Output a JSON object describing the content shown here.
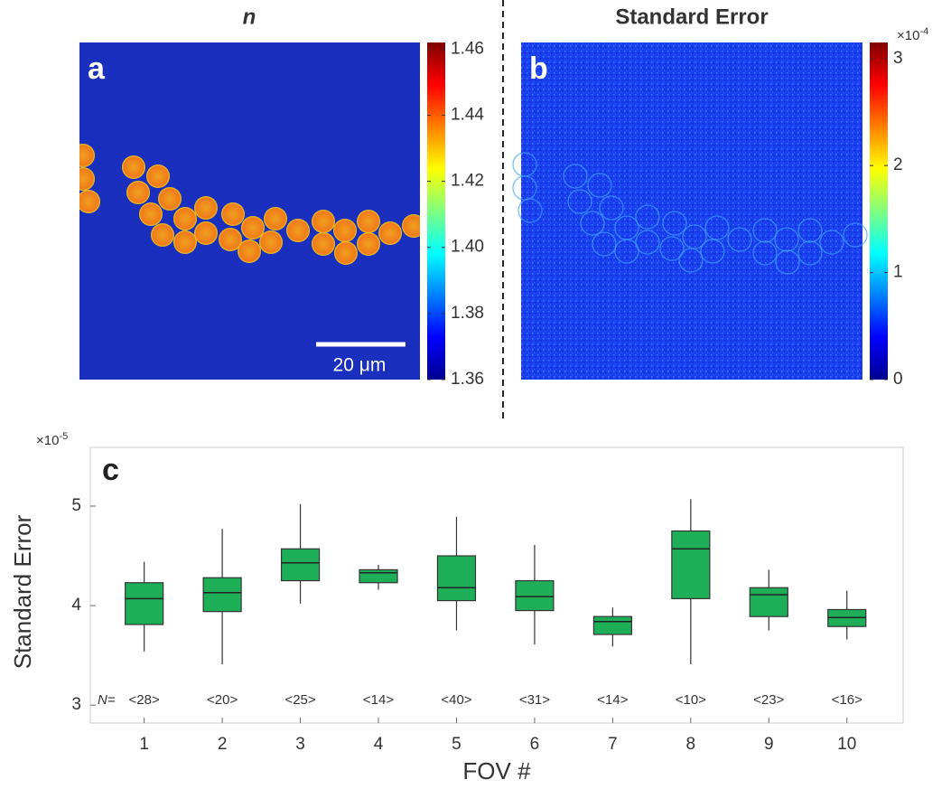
{
  "chart_data": [
    {
      "type": "image",
      "panel_label": "a",
      "title": "n",
      "scale_bar_label": "20 μm",
      "colorbar": {
        "clim": [
          1.36,
          1.462
        ],
        "ticks": [
          1.36,
          1.38,
          {
            "value": 1.4,
            "label": "1.40"
          },
          1.42,
          1.44,
          1.46
        ]
      }
    },
    {
      "type": "image",
      "panel_label": "b",
      "title": "Standard Error",
      "colorbar": {
        "clim": [
          0,
          3.15
        ],
        "ticks": [
          0,
          1,
          2,
          3
        ],
        "scale_base": "×10",
        "scale_exp": "-4"
      }
    },
    {
      "type": "box",
      "panel_label": "c",
      "xlabel": "FOV #",
      "ylabel": "Standard Error",
      "scale_base": "×10",
      "scale_exp": "-5",
      "color": "#1eae58",
      "x": [
        1,
        2,
        3,
        4,
        5,
        6,
        7,
        8,
        9,
        10
      ],
      "xlim": [
        0.31,
        10.72
      ],
      "xticks": [
        1,
        2,
        3,
        4,
        5,
        6,
        7,
        8,
        9,
        10
      ],
      "ylim": [
        2.82,
        5.59
      ],
      "yticks": [
        3,
        4,
        5
      ],
      "whisker_low": [
        3.54,
        3.41,
        4.02,
        4.16,
        3.75,
        3.61,
        3.59,
        3.41,
        3.75,
        3.66
      ],
      "q1": [
        3.81,
        3.94,
        4.25,
        4.23,
        4.05,
        3.95,
        3.71,
        4.07,
        3.89,
        3.79
      ],
      "median": [
        4.07,
        4.13,
        4.43,
        4.33,
        4.18,
        4.09,
        3.84,
        4.57,
        4.11,
        3.88
      ],
      "q3": [
        4.23,
        4.28,
        4.57,
        4.36,
        4.5,
        4.25,
        3.89,
        4.75,
        4.18,
        3.96
      ],
      "whisker_high": [
        4.44,
        4.77,
        5.02,
        4.41,
        4.89,
        4.61,
        3.98,
        5.07,
        4.36,
        4.15
      ],
      "count_prefix": "N=",
      "counts": [
        28,
        20,
        25,
        14,
        40,
        31,
        14,
        10,
        23,
        16
      ],
      "count_labels": [
        "<28>",
        "<20>",
        "<25>",
        "<14>",
        "<40>",
        "<31>",
        "<14>",
        "<10>",
        "<23>",
        "<16>"
      ]
    }
  ]
}
